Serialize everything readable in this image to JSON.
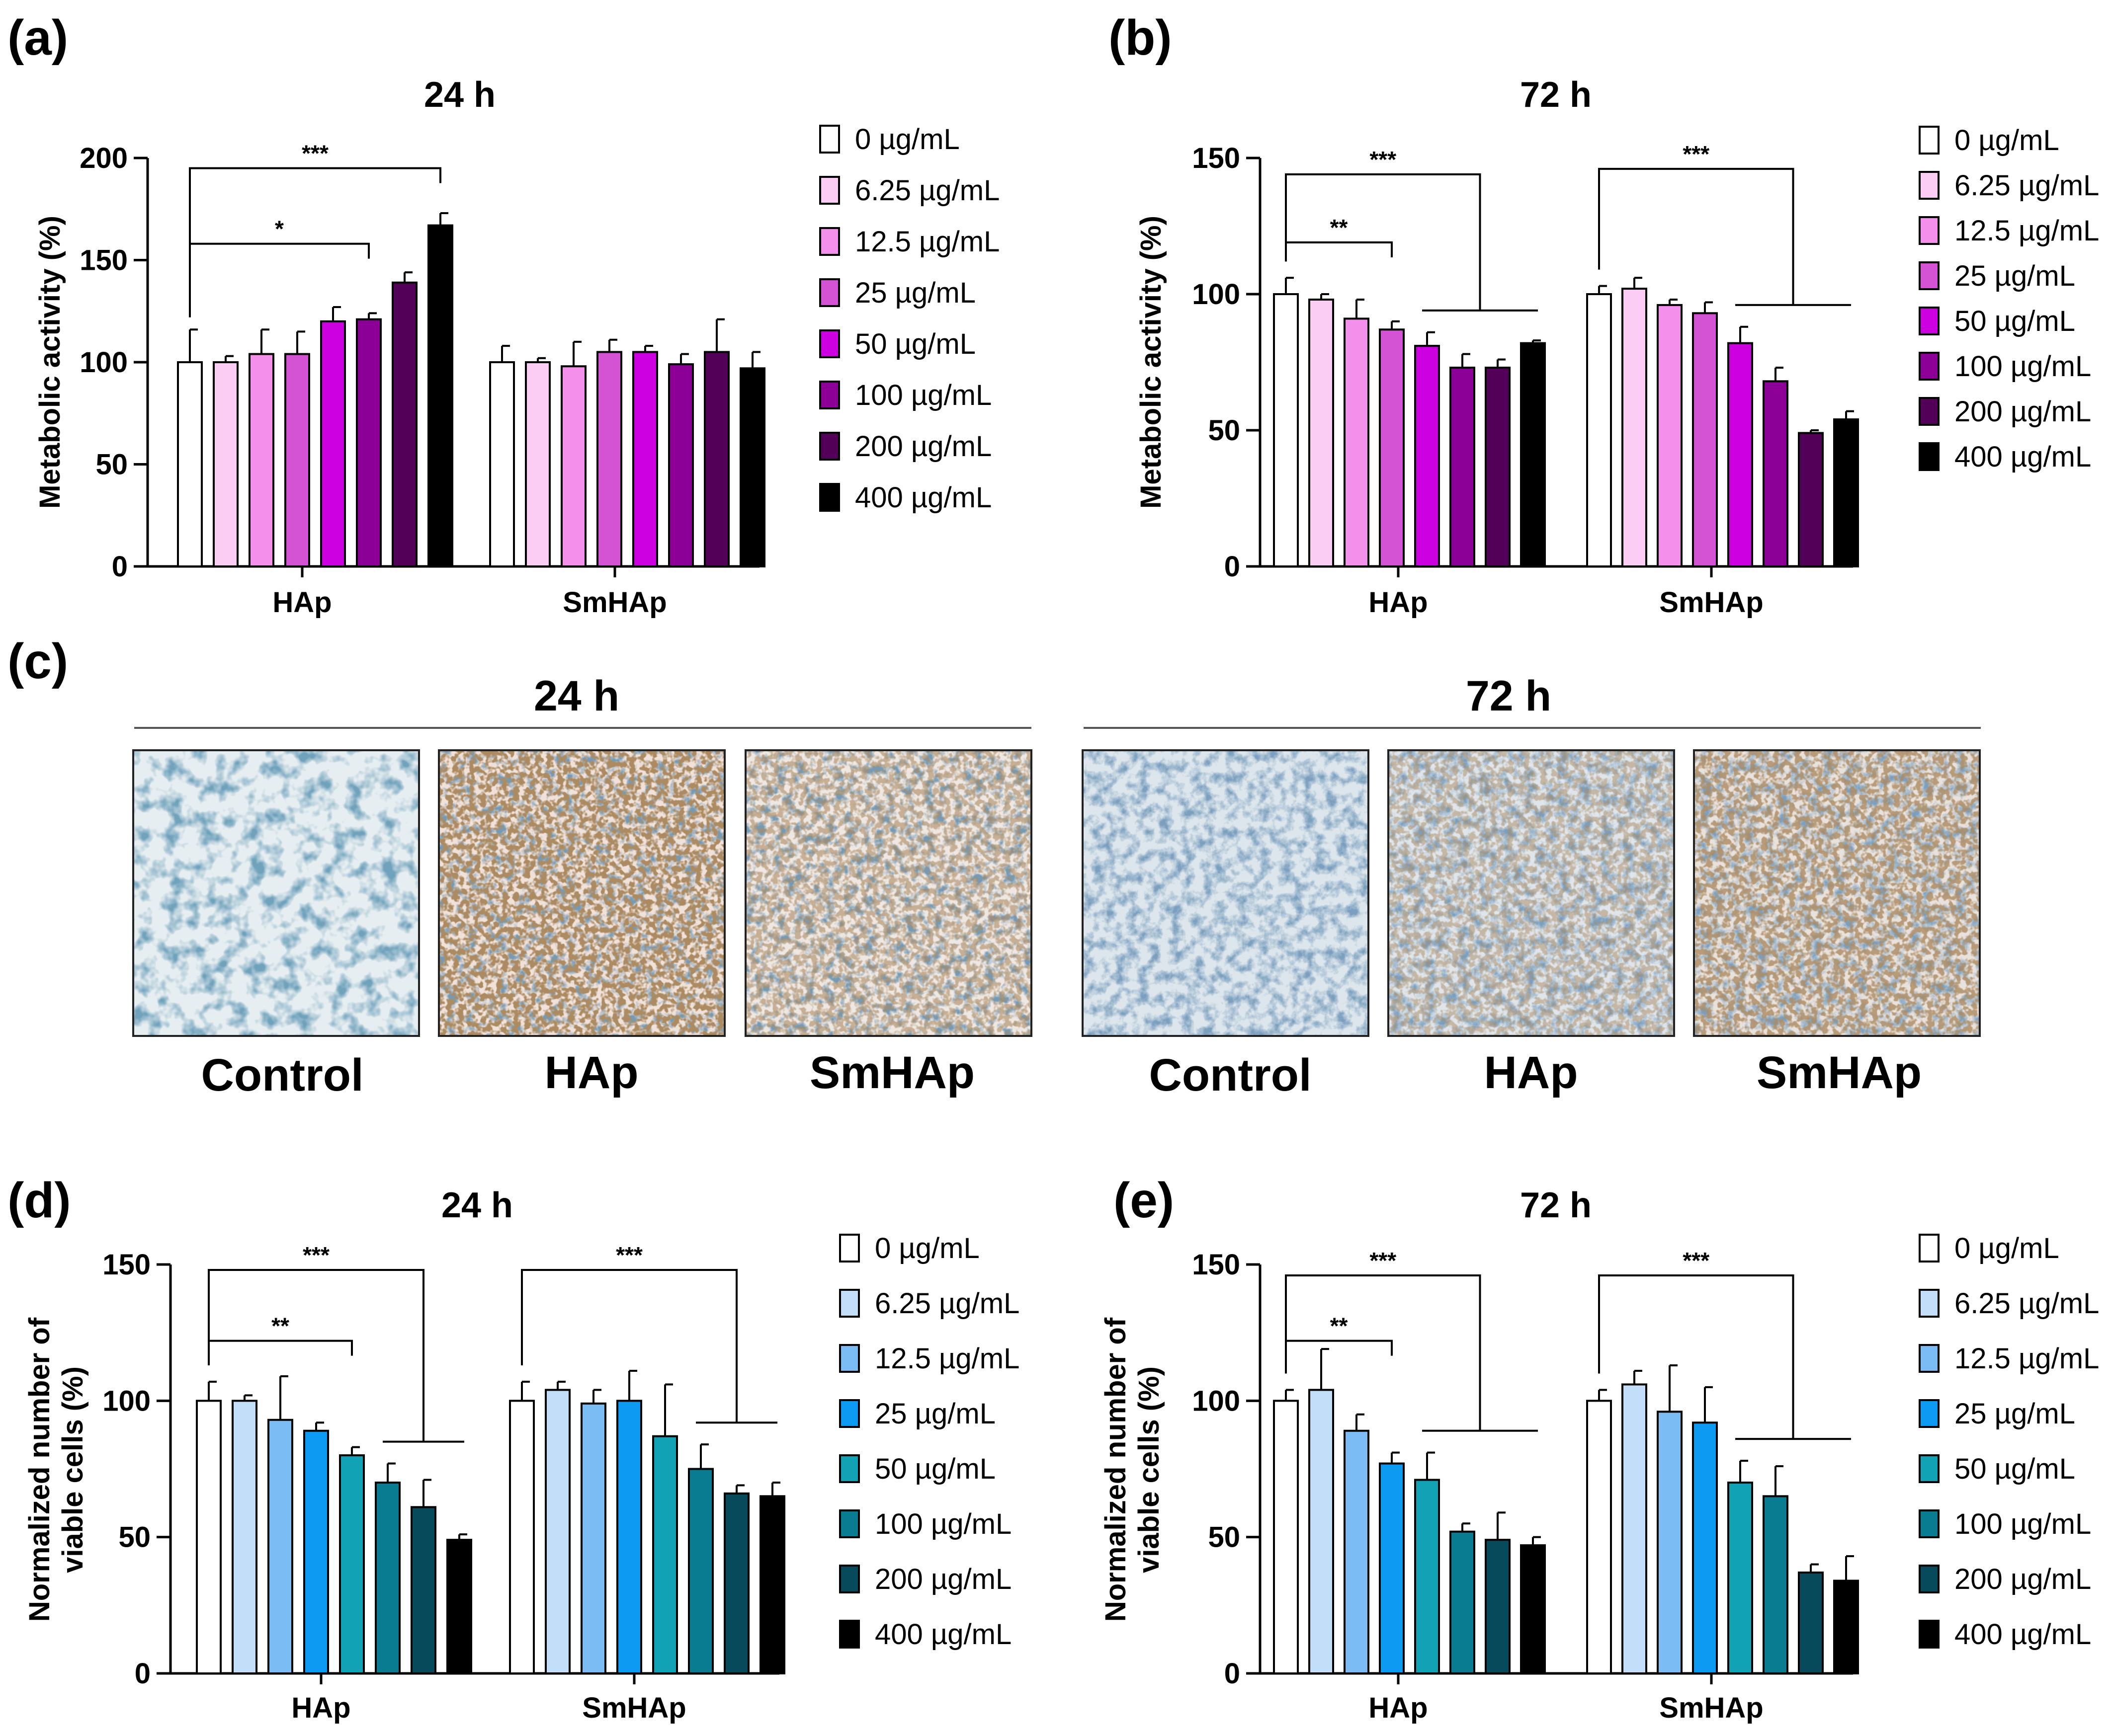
{
  "panel_letters": {
    "a": "(a)",
    "b": "(b)",
    "c": "(c)",
    "d": "(d)",
    "e": "(e)"
  },
  "groups": [
    "HAp",
    "SmHAp"
  ],
  "legend_labels": [
    "0 µg/mL",
    "6.25 µg/mL",
    "12.5 µg/mL",
    "25 µg/mL",
    "50 µg/mL",
    "100 µg/mL",
    "200 µg/mL",
    "400 µg/mL"
  ],
  "colors": {
    "purple": [
      "#ffffff",
      "#fccdf4",
      "#f490ec",
      "#d452d4",
      "#cc00e0",
      "#8c0098",
      "#520058",
      "#000000"
    ],
    "blue": [
      "#ffffff",
      "#c2def9",
      "#7cbcf4",
      "#0c9af2",
      "#11a2b6",
      "#0a7c92",
      "#064a5c",
      "#000000"
    ]
  },
  "chart_data": [
    {
      "id": "a",
      "type": "bar",
      "title": "24 h",
      "ylabel": "Metabolic activity (%)",
      "ylim": [
        0,
        200
      ],
      "yticks": [
        0,
        50,
        100,
        150,
        200
      ],
      "palette": "purple",
      "series": [
        {
          "name": "HAp",
          "values": [
            100,
            100,
            104,
            104,
            120,
            121,
            139,
            167
          ],
          "errors": [
            16,
            3,
            12,
            11,
            7,
            3,
            5,
            6
          ]
        },
        {
          "name": "SmHAp",
          "values": [
            100,
            100,
            98,
            105,
            105,
            99,
            105,
            97
          ],
          "errors": [
            8,
            2,
            12,
            6,
            3,
            5,
            16,
            8
          ]
        }
      ],
      "brackets": [
        {
          "label": "***",
          "group": 0,
          "from": 0,
          "to": 7,
          "level": 195
        },
        {
          "label": "*",
          "group": 0,
          "from": 0,
          "to": 5,
          "level": 158
        }
      ]
    },
    {
      "id": "b",
      "type": "bar",
      "title": "72 h",
      "ylabel": "Metabolic activity (%)",
      "ylim": [
        0,
        150
      ],
      "yticks": [
        0,
        50,
        100,
        150
      ],
      "palette": "purple",
      "series": [
        {
          "name": "HAp",
          "values": [
            100,
            98,
            91,
            87,
            81,
            73,
            73,
            82
          ],
          "errors": [
            6,
            2,
            7,
            3,
            5,
            5,
            3,
            1
          ]
        },
        {
          "name": "SmHAp",
          "values": [
            100,
            102,
            96,
            93,
            82,
            68,
            49,
            54
          ],
          "errors": [
            3,
            4,
            2,
            4,
            6,
            5,
            1,
            3
          ]
        }
      ],
      "brackets": [
        {
          "label": "***",
          "group": 0,
          "from": 0,
          "to": 7,
          "level": 144,
          "span": [
            4,
            7
          ]
        },
        {
          "label": "**",
          "group": 0,
          "from": 0,
          "to": 3,
          "level": 119
        },
        {
          "label": "***",
          "group": 1,
          "from": 0,
          "to": 7,
          "level": 146,
          "span": [
            4,
            7
          ]
        }
      ]
    },
    {
      "id": "d",
      "type": "bar",
      "title": "24 h",
      "ylabel": "Normalized number of viable cells (%)",
      "ylabel_lines": [
        "Normalized number of",
        "viable cells (%)"
      ],
      "ylim": [
        0,
        150
      ],
      "yticks": [
        0,
        50,
        100,
        150
      ],
      "palette": "blue",
      "series": [
        {
          "name": "HAp",
          "values": [
            100,
            100,
            93,
            89,
            80,
            70,
            61,
            49
          ],
          "errors": [
            7,
            2,
            16,
            3,
            3,
            7,
            10,
            2
          ]
        },
        {
          "name": "SmHAp",
          "values": [
            100,
            104,
            99,
            100,
            87,
            75,
            66,
            65
          ],
          "errors": [
            7,
            3,
            5,
            11,
            19,
            9,
            3,
            5
          ]
        }
      ],
      "brackets": [
        {
          "label": "***",
          "group": 0,
          "from": 0,
          "to": 7,
          "level": 148,
          "span": [
            5,
            7
          ]
        },
        {
          "label": "**",
          "group": 0,
          "from": 0,
          "to": 4,
          "level": 122
        },
        {
          "label": "***",
          "group": 1,
          "from": 0,
          "to": 7,
          "level": 148,
          "span": [
            5,
            7
          ]
        }
      ]
    },
    {
      "id": "e",
      "type": "bar",
      "title": "72 h",
      "ylabel": "Normalized number of viable cells (%)",
      "ylabel_lines": [
        "Normalized number of",
        "viable cells (%)"
      ],
      "ylim": [
        0,
        150
      ],
      "yticks": [
        0,
        50,
        100,
        150
      ],
      "palette": "blue",
      "series": [
        {
          "name": "HAp",
          "values": [
            100,
            104,
            89,
            77,
            71,
            52,
            49,
            47
          ],
          "errors": [
            4,
            15,
            6,
            4,
            10,
            3,
            10,
            3
          ]
        },
        {
          "name": "SmHAp",
          "values": [
            100,
            106,
            96,
            92,
            70,
            65,
            37,
            34
          ],
          "errors": [
            4,
            5,
            17,
            13,
            8,
            11,
            3,
            9
          ]
        }
      ],
      "brackets": [
        {
          "label": "***",
          "group": 0,
          "from": 0,
          "to": 7,
          "level": 146,
          "span": [
            4,
            7
          ]
        },
        {
          "label": "**",
          "group": 0,
          "from": 0,
          "to": 3,
          "level": 122
        },
        {
          "label": "***",
          "group": 1,
          "from": 0,
          "to": 7,
          "level": 146,
          "span": [
            4,
            7
          ]
        }
      ]
    }
  ],
  "micrographs": {
    "sections": [
      {
        "title": "24 h",
        "labels": [
          "Control",
          "HAp",
          "SmHAp"
        ]
      },
      {
        "title": "72 h",
        "labels": [
          "Control",
          "HAp",
          "SmHAp"
        ]
      }
    ]
  }
}
